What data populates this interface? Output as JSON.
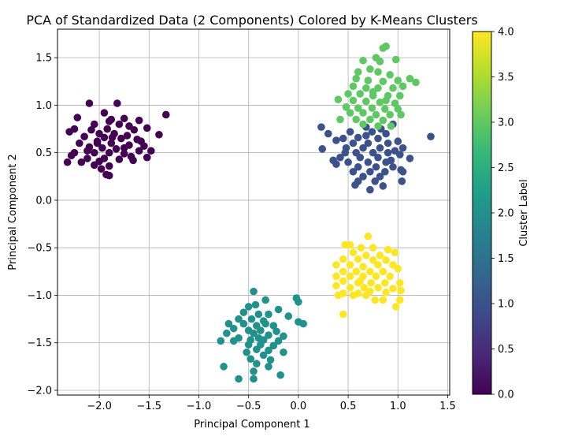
{
  "chart_data": {
    "type": "scatter",
    "title": "PCA of Standardized Data (2 Components) Colored by K-Means Clusters",
    "xlabel": "Principal Component 1",
    "ylabel": "Principal Component 2",
    "xlim": [
      -2.42,
      1.52
    ],
    "ylim": [
      -2.05,
      1.8
    ],
    "xticks": [
      -2.0,
      -1.5,
      -1.0,
      -0.5,
      0.0,
      0.5,
      1.0,
      1.5
    ],
    "xtick_labels": [
      "−2.0",
      "−1.5",
      "−1.0",
      "−0.5",
      "0.0",
      "0.5",
      "1.0",
      "1.5"
    ],
    "yticks": [
      -2.0,
      -1.5,
      -1.0,
      -0.5,
      0.0,
      0.5,
      1.0,
      1.5
    ],
    "ytick_labels": [
      "−2.0",
      "−1.5",
      "−1.0",
      "−0.5",
      "0.0",
      "0.5",
      "1.0",
      "1.5"
    ],
    "grid": true,
    "colormap": "viridis",
    "colorbar": {
      "label": "Cluster Label",
      "range": [
        0.0,
        4.0
      ],
      "ticks": [
        0.0,
        0.5,
        1.0,
        1.5,
        2.0,
        2.5,
        3.0,
        3.5,
        4.0
      ],
      "tick_labels": [
        "0.0",
        "0.5",
        "1.0",
        "1.5",
        "2.0",
        "2.5",
        "3.0",
        "3.5",
        "4.0"
      ],
      "stops": [
        "#440154",
        "#482878",
        "#3e4a89",
        "#31688e",
        "#26828e",
        "#1f9e89",
        "#35b779",
        "#6ece58",
        "#b5de2b",
        "#fde725"
      ]
    },
    "series": [
      {
        "cluster": 0,
        "color": "#440154",
        "points": [
          [
            -2.1,
            1.02
          ],
          [
            -1.82,
            1.02
          ],
          [
            -1.95,
            0.92
          ],
          [
            -1.33,
            0.9
          ],
          [
            -2.22,
            0.87
          ],
          [
            -1.88,
            0.85
          ],
          [
            -1.75,
            0.86
          ],
          [
            -1.6,
            0.84
          ],
          [
            -1.9,
            0.83
          ],
          [
            -2.05,
            0.8
          ],
          [
            -1.8,
            0.8
          ],
          [
            -1.7,
            0.78
          ],
          [
            -1.52,
            0.76
          ],
          [
            -2.25,
            0.75
          ],
          [
            -2.08,
            0.74
          ],
          [
            -1.92,
            0.75
          ],
          [
            -1.65,
            0.74
          ],
          [
            -2.3,
            0.72
          ],
          [
            -2.0,
            0.7
          ],
          [
            -1.85,
            0.7
          ],
          [
            -1.72,
            0.68
          ],
          [
            -1.4,
            0.69
          ],
          [
            -2.15,
            0.67
          ],
          [
            -1.95,
            0.66
          ],
          [
            -1.78,
            0.65
          ],
          [
            -1.62,
            0.64
          ],
          [
            -2.02,
            0.62
          ],
          [
            -1.88,
            0.6
          ],
          [
            -2.2,
            0.6
          ],
          [
            -1.7,
            0.58
          ],
          [
            -1.55,
            0.57
          ],
          [
            -2.1,
            0.56
          ],
          [
            -1.97,
            0.55
          ],
          [
            -1.83,
            0.54
          ],
          [
            -1.6,
            0.52
          ],
          [
            -1.48,
            0.52
          ],
          [
            -2.25,
            0.5
          ],
          [
            -2.05,
            0.5
          ],
          [
            -1.9,
            0.5
          ],
          [
            -1.75,
            0.49
          ],
          [
            -2.28,
            0.47
          ],
          [
            -1.68,
            0.46
          ],
          [
            -1.52,
            0.45
          ],
          [
            -2.12,
            0.44
          ],
          [
            -1.95,
            0.44
          ],
          [
            -1.8,
            0.43
          ],
          [
            -2.0,
            0.41
          ],
          [
            -2.18,
            0.4
          ],
          [
            -1.66,
            0.42
          ],
          [
            -2.32,
            0.4
          ],
          [
            -2.05,
            0.37
          ],
          [
            -1.9,
            0.36
          ],
          [
            -1.98,
            0.33
          ],
          [
            -1.93,
            0.27
          ],
          [
            -1.9,
            0.26
          ],
          [
            -2.02,
            0.6
          ],
          [
            -1.75,
            0.55
          ],
          [
            -1.58,
            0.62
          ],
          [
            -1.87,
            0.66
          ],
          [
            -2.12,
            0.52
          ]
        ]
      },
      {
        "cluster": 1,
        "color": "#3b528b",
        "points": [
          [
            0.23,
            0.77
          ],
          [
            0.68,
            0.77
          ],
          [
            0.83,
            0.75
          ],
          [
            0.95,
            0.8
          ],
          [
            0.3,
            0.7
          ],
          [
            0.52,
            0.72
          ],
          [
            0.74,
            0.72
          ],
          [
            0.88,
            0.7
          ],
          [
            0.45,
            0.65
          ],
          [
            0.6,
            0.66
          ],
          [
            0.8,
            0.65
          ],
          [
            1.0,
            0.62
          ],
          [
            0.38,
            0.63
          ],
          [
            1.33,
            0.67
          ],
          [
            0.55,
            0.6
          ],
          [
            0.7,
            0.6
          ],
          [
            0.9,
            0.6
          ],
          [
            1.05,
            0.55
          ],
          [
            0.24,
            0.54
          ],
          [
            0.48,
            0.55
          ],
          [
            0.65,
            0.55
          ],
          [
            0.82,
            0.55
          ],
          [
            0.97,
            0.52
          ],
          [
            0.58,
            0.5
          ],
          [
            0.75,
            0.5
          ],
          [
            0.9,
            0.5
          ],
          [
            1.02,
            0.48
          ],
          [
            0.42,
            0.45
          ],
          [
            0.62,
            0.45
          ],
          [
            0.8,
            0.45
          ],
          [
            1.12,
            0.44
          ],
          [
            0.5,
            0.4
          ],
          [
            0.7,
            0.4
          ],
          [
            0.88,
            0.4
          ],
          [
            0.38,
            0.38
          ],
          [
            0.6,
            0.35
          ],
          [
            0.78,
            0.35
          ],
          [
            0.95,
            0.35
          ],
          [
            1.03,
            0.32
          ],
          [
            0.55,
            0.3
          ],
          [
            0.72,
            0.3
          ],
          [
            0.87,
            0.3
          ],
          [
            1.05,
            0.3
          ],
          [
            0.65,
            0.25
          ],
          [
            0.82,
            0.25
          ],
          [
            0.6,
            0.2
          ],
          [
            0.77,
            0.2
          ],
          [
            0.85,
            0.15
          ],
          [
            0.57,
            0.16
          ],
          [
            0.72,
            0.11
          ],
          [
            1.04,
            0.2
          ],
          [
            0.35,
            0.42
          ],
          [
            0.68,
            0.68
          ],
          [
            0.93,
            0.42
          ],
          [
            0.47,
            0.5
          ]
        ]
      },
      {
        "cluster": 2,
        "color": "#21918c",
        "points": [
          [
            -0.45,
            -0.96
          ],
          [
            -0.02,
            -1.03
          ],
          [
            -0.33,
            -1.05
          ],
          [
            -0.43,
            -1.1
          ],
          [
            0.0,
            -1.07
          ],
          [
            -0.5,
            -1.12
          ],
          [
            -0.2,
            -1.15
          ],
          [
            -0.55,
            -1.18
          ],
          [
            -0.4,
            -1.2
          ],
          [
            -0.3,
            -1.2
          ],
          [
            -0.1,
            -1.22
          ],
          [
            -0.6,
            -1.25
          ],
          [
            -0.47,
            -1.25
          ],
          [
            -0.35,
            -1.27
          ],
          [
            0.0,
            -1.28
          ],
          [
            0.05,
            -1.3
          ],
          [
            -0.7,
            -1.3
          ],
          [
            -0.55,
            -1.3
          ],
          [
            -0.42,
            -1.32
          ],
          [
            -0.25,
            -1.32
          ],
          [
            -0.65,
            -1.35
          ],
          [
            -0.5,
            -1.37
          ],
          [
            -0.38,
            -1.37
          ],
          [
            -0.22,
            -1.38
          ],
          [
            -0.72,
            -1.4
          ],
          [
            -0.45,
            -1.4
          ],
          [
            -0.3,
            -1.42
          ],
          [
            -0.15,
            -1.43
          ],
          [
            -0.6,
            -1.45
          ],
          [
            -0.48,
            -1.47
          ],
          [
            -0.35,
            -1.47
          ],
          [
            -0.2,
            -1.48
          ],
          [
            -0.78,
            -1.48
          ],
          [
            -0.65,
            -1.48
          ],
          [
            -0.5,
            -1.52
          ],
          [
            -0.38,
            -1.52
          ],
          [
            -0.25,
            -1.53
          ],
          [
            -0.42,
            -1.57
          ],
          [
            -0.3,
            -1.58
          ],
          [
            -0.52,
            -1.6
          ],
          [
            -0.15,
            -1.6
          ],
          [
            -0.35,
            -1.63
          ],
          [
            -0.48,
            -1.67
          ],
          [
            -0.28,
            -1.68
          ],
          [
            -0.42,
            -1.72
          ],
          [
            -0.3,
            -1.75
          ],
          [
            -0.75,
            -1.75
          ],
          [
            -0.45,
            -1.8
          ],
          [
            -0.18,
            -1.84
          ],
          [
            -0.6,
            -1.88
          ],
          [
            -0.45,
            -1.88
          ],
          [
            -0.33,
            -1.3
          ],
          [
            -0.4,
            -1.45
          ]
        ]
      },
      {
        "cluster": 3,
        "color": "#5ec962",
        "points": [
          [
            0.88,
            1.62
          ],
          [
            0.85,
            1.6
          ],
          [
            0.78,
            1.5
          ],
          [
            0.82,
            1.46
          ],
          [
            0.98,
            1.48
          ],
          [
            0.65,
            1.47
          ],
          [
            0.72,
            1.38
          ],
          [
            0.6,
            1.35
          ],
          [
            0.8,
            1.35
          ],
          [
            0.92,
            1.32
          ],
          [
            0.58,
            1.28
          ],
          [
            0.7,
            1.26
          ],
          [
            0.85,
            1.25
          ],
          [
            1.0,
            1.26
          ],
          [
            1.12,
            1.28
          ],
          [
            1.18,
            1.24
          ],
          [
            0.55,
            1.2
          ],
          [
            0.68,
            1.18
          ],
          [
            0.8,
            1.18
          ],
          [
            0.95,
            1.18
          ],
          [
            1.05,
            1.2
          ],
          [
            0.5,
            1.12
          ],
          [
            0.62,
            1.12
          ],
          [
            0.75,
            1.1
          ],
          [
            0.9,
            1.1
          ],
          [
            1.02,
            1.1
          ],
          [
            0.4,
            1.06
          ],
          [
            0.55,
            1.05
          ],
          [
            0.68,
            1.04
          ],
          [
            0.82,
            1.03
          ],
          [
            0.97,
            1.02
          ],
          [
            0.48,
            0.98
          ],
          [
            0.6,
            0.97
          ],
          [
            0.74,
            0.97
          ],
          [
            0.87,
            0.96
          ],
          [
            1.0,
            0.96
          ],
          [
            0.52,
            0.92
          ],
          [
            0.65,
            0.92
          ],
          [
            0.78,
            0.9
          ],
          [
            0.92,
            0.9
          ],
          [
            1.03,
            0.9
          ],
          [
            0.42,
            0.85
          ],
          [
            0.58,
            0.85
          ],
          [
            0.72,
            0.85
          ],
          [
            0.85,
            0.84
          ],
          [
            0.65,
            0.8
          ],
          [
            0.8,
            0.78
          ],
          [
            0.93,
            0.78
          ],
          [
            0.75,
            1.14
          ],
          [
            0.88,
            1.05
          ]
        ]
      },
      {
        "cluster": 4,
        "color": "#fde725",
        "points": [
          [
            0.7,
            -0.38
          ],
          [
            0.47,
            -0.47
          ],
          [
            0.52,
            -0.47
          ],
          [
            0.63,
            -0.5
          ],
          [
            0.75,
            -0.5
          ],
          [
            0.9,
            -0.52
          ],
          [
            0.97,
            -0.55
          ],
          [
            0.55,
            -0.55
          ],
          [
            0.68,
            -0.58
          ],
          [
            0.82,
            -0.58
          ],
          [
            0.45,
            -0.62
          ],
          [
            0.6,
            -0.62
          ],
          [
            0.75,
            -0.63
          ],
          [
            0.88,
            -0.63
          ],
          [
            0.38,
            -0.68
          ],
          [
            0.52,
            -0.68
          ],
          [
            0.65,
            -0.7
          ],
          [
            0.8,
            -0.68
          ],
          [
            0.95,
            -0.68
          ],
          [
            0.45,
            -0.75
          ],
          [
            0.58,
            -0.75
          ],
          [
            0.72,
            -0.75
          ],
          [
            0.85,
            -0.75
          ],
          [
            1.0,
            -0.72
          ],
          [
            0.38,
            -0.8
          ],
          [
            0.52,
            -0.8
          ],
          [
            0.65,
            -0.8
          ],
          [
            0.78,
            -0.8
          ],
          [
            0.92,
            -0.8
          ],
          [
            0.45,
            -0.85
          ],
          [
            0.6,
            -0.87
          ],
          [
            0.73,
            -0.87
          ],
          [
            0.87,
            -0.87
          ],
          [
            1.02,
            -0.87
          ],
          [
            0.38,
            -0.9
          ],
          [
            0.52,
            -0.92
          ],
          [
            0.66,
            -0.92
          ],
          [
            0.8,
            -0.92
          ],
          [
            0.95,
            -0.93
          ],
          [
            0.45,
            -0.98
          ],
          [
            0.6,
            -0.98
          ],
          [
            0.72,
            -0.96
          ],
          [
            0.88,
            -0.97
          ],
          [
            1.03,
            -0.95
          ],
          [
            0.4,
            -1.0
          ],
          [
            0.55,
            -1.0
          ],
          [
            0.68,
            -1.0
          ],
          [
            0.77,
            -1.05
          ],
          [
            0.85,
            -1.05
          ],
          [
            1.02,
            -1.05
          ],
          [
            0.98,
            -1.12
          ],
          [
            0.45,
            -1.2
          ],
          [
            0.62,
            -0.85
          ]
        ]
      }
    ]
  }
}
